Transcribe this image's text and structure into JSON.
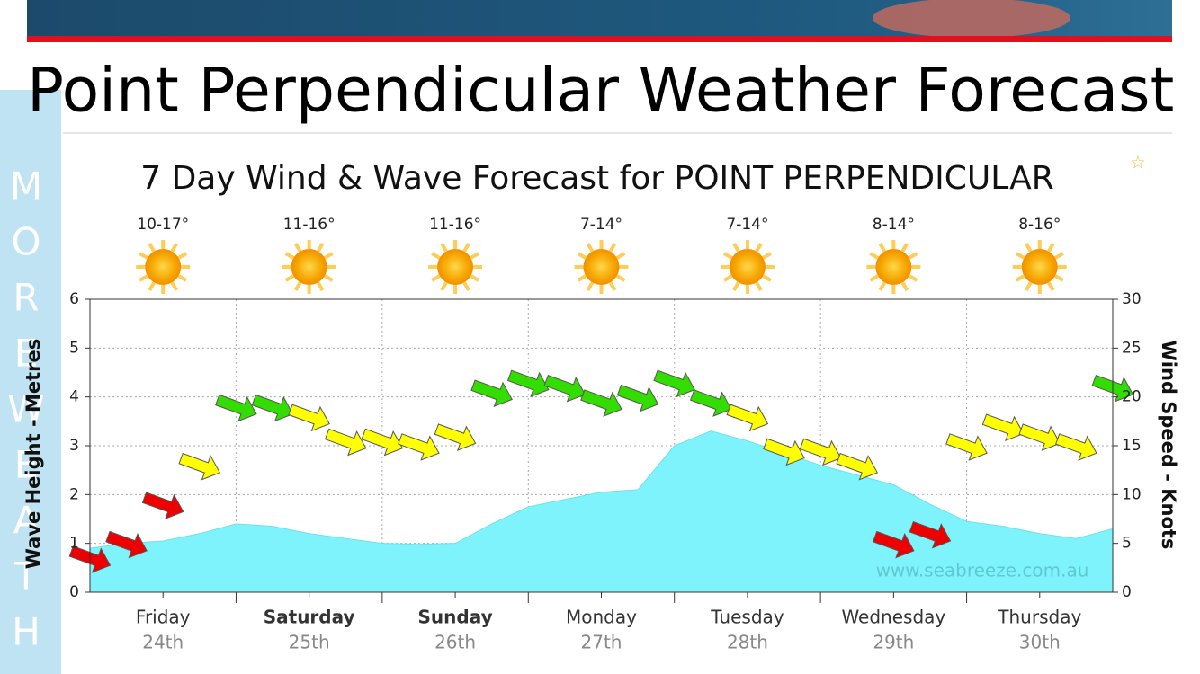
{
  "page": {
    "title": "Point Perpendicular Weather Forecast",
    "side_tab": [
      "M",
      "O",
      "R",
      "E",
      "W",
      "E",
      "A",
      "T",
      "H"
    ]
  },
  "chart_data": {
    "type": "area",
    "title": "7 Day Wind & Wave Forecast for POINT PERPENDICULAR",
    "days": [
      {
        "name": "Friday",
        "date": "24th",
        "temp": "10-17°",
        "bold": false
      },
      {
        "name": "Saturday",
        "date": "25th",
        "temp": "11-16°",
        "bold": true
      },
      {
        "name": "Sunday",
        "date": "26th",
        "temp": "11-16°",
        "bold": true
      },
      {
        "name": "Monday",
        "date": "27th",
        "temp": "7-14°",
        "bold": false
      },
      {
        "name": "Tuesday",
        "date": "28th",
        "temp": "7-14°",
        "bold": false
      },
      {
        "name": "Wednesday",
        "date": "29th",
        "temp": "8-14°",
        "bold": false
      },
      {
        "name": "Thursday",
        "date": "30th",
        "temp": "8-16°",
        "bold": false
      }
    ],
    "ylabel": "Wave Height - Metres",
    "y2label": "Wind Speed - Knots",
    "watermark": "www.seabreeze.com.au",
    "ylim": [
      0,
      6
    ],
    "yticks": [
      0,
      1,
      2,
      3,
      4,
      5,
      6
    ],
    "y2lim": [
      0,
      30
    ],
    "y2ticks": [
      0,
      5,
      10,
      15,
      20,
      25,
      30
    ],
    "grid": true,
    "series": [
      {
        "name": "Wave Height",
        "color": "#7ff3fb",
        "values": [
          0.9,
          1.0,
          1.05,
          1.2,
          1.4,
          1.35,
          1.2,
          1.1,
          1.0,
          0.98,
          1.0,
          1.4,
          1.75,
          1.9,
          2.05,
          2.1,
          3.0,
          3.3,
          3.1,
          2.85,
          2.6,
          2.4,
          2.2,
          1.8,
          1.45,
          1.35,
          1.2,
          1.1,
          1.3
        ]
      },
      {
        "name": "Wind Speed",
        "axis": "y2",
        "values": [
          3.5,
          5,
          9,
          13,
          19,
          19,
          18,
          15.5,
          15.5,
          15,
          16,
          20.5,
          21.5,
          21,
          19.5,
          20,
          21.5,
          19.5,
          18,
          14.5,
          14.5,
          13,
          5,
          6,
          15,
          17,
          16,
          15,
          21
        ],
        "colors": [
          "#ee0000",
          "#ee0000",
          "#ee0000",
          "#ffff00",
          "#33dd00",
          "#33dd00",
          "#ffff00",
          "#ffff00",
          "#ffff00",
          "#ffff00",
          "#ffff00",
          "#33dd00",
          "#33dd00",
          "#33dd00",
          "#33dd00",
          "#33dd00",
          "#33dd00",
          "#33dd00",
          "#ffff00",
          "#ffff00",
          "#ffff00",
          "#ffff00",
          "#ee0000",
          "#ee0000",
          "#ffff00",
          "#ffff00",
          "#ffff00",
          "#ffff00",
          "#33dd00"
        ]
      }
    ]
  }
}
